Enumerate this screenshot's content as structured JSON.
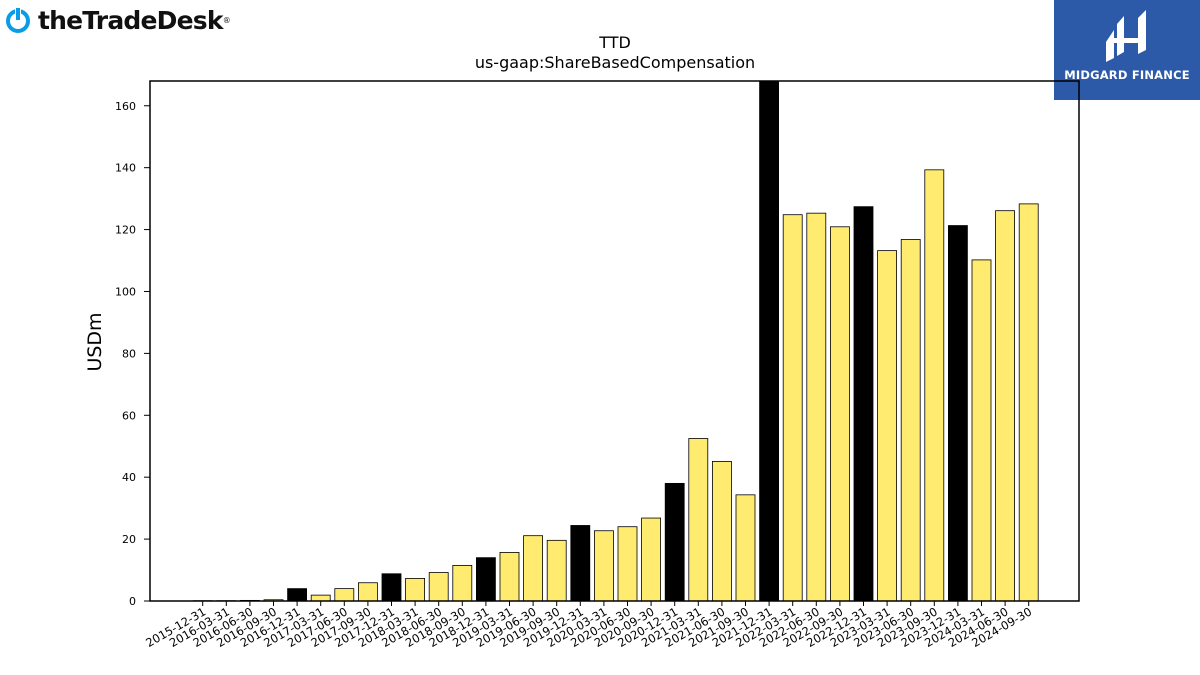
{
  "brand_left": {
    "name": "theTradeDesk",
    "reg": "®",
    "color": "#0a9de6"
  },
  "brand_right": {
    "name": "MIDGARD FINANCE",
    "bg": "#2c5aa8"
  },
  "chart_data": {
    "type": "bar",
    "title": "TTD",
    "subtitle": "us-gaap:ShareBasedCompensation",
    "ylabel": "USDm",
    "xlabel": "",
    "ylim": [
      0,
      168
    ],
    "yticks": [
      0,
      20,
      40,
      60,
      80,
      100,
      120,
      140,
      160
    ],
    "grid": false,
    "colors": {
      "quarter": "#ffeb70",
      "annual": "#000000",
      "edge": "#000000"
    },
    "categories": [
      "2015-12-31",
      "2016-03-31",
      "2016-06-30",
      "2016-09-30",
      "2016-12-31",
      "2017-03-31",
      "2017-06-30",
      "2017-09-30",
      "2017-12-31",
      "2018-03-31",
      "2018-06-30",
      "2018-09-30",
      "2018-12-31",
      "2019-03-31",
      "2019-06-30",
      "2019-09-30",
      "2019-12-31",
      "2020-03-31",
      "2020-06-30",
      "2020-09-30",
      "2020-12-31",
      "2021-03-31",
      "2021-06-30",
      "2021-09-30",
      "2021-12-31",
      "2022-03-31",
      "2022-06-30",
      "2022-09-30",
      "2022-12-31",
      "2023-03-31",
      "2023-06-30",
      "2023-09-30",
      "2023-12-31",
      "2024-03-31",
      "2024-06-30",
      "2024-09-30"
    ],
    "values": [
      0.1,
      0.1,
      0.2,
      0.4,
      4.0,
      1.9,
      4.0,
      5.9,
      8.8,
      7.3,
      9.2,
      11.5,
      14.0,
      15.7,
      21.1,
      19.6,
      24.4,
      22.7,
      24.0,
      26.8,
      38.0,
      52.5,
      45.1,
      34.3,
      168.0,
      124.8,
      125.3,
      120.9,
      127.4,
      113.2,
      116.8,
      139.3,
      121.3,
      110.2,
      126.1,
      128.3
    ],
    "annual": [
      false,
      false,
      false,
      false,
      true,
      false,
      false,
      false,
      true,
      false,
      false,
      false,
      true,
      false,
      false,
      false,
      true,
      false,
      false,
      false,
      true,
      false,
      false,
      false,
      true,
      false,
      false,
      false,
      true,
      false,
      false,
      false,
      true,
      false,
      false,
      false
    ]
  }
}
